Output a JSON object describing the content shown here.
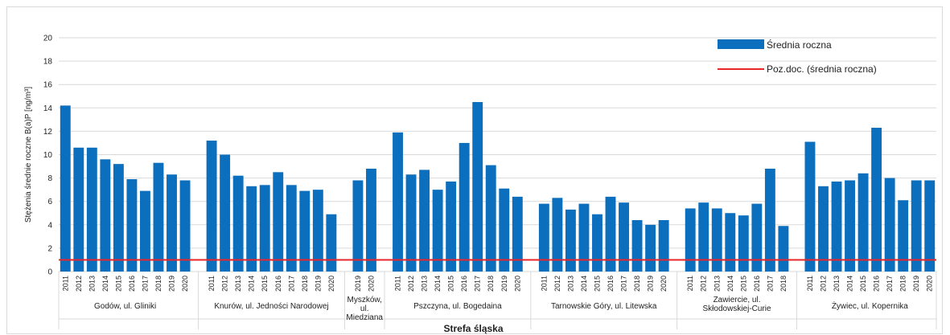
{
  "chart_data": {
    "type": "bar",
    "ylabel": "Stężenia średnie roczne B(a)P [ng/m³]",
    "ylim": [
      0,
      20
    ],
    "yticks": [
      0,
      2,
      4,
      6,
      8,
      10,
      12,
      14,
      16,
      18,
      20
    ],
    "grid": true,
    "legend_position": "top-right",
    "xlabel": "Strefa śląska",
    "colors": {
      "bar": "#0c6fbe",
      "limit": "#e8252a",
      "grid": "#d9d9d9"
    },
    "series": [
      {
        "name": "Średnia roczna",
        "kind": "bar"
      },
      {
        "name": "Poz.doc. (średnia roczna)",
        "kind": "line",
        "value": 1
      }
    ],
    "groups": [
      {
        "label": "Godów, ul. Gliniki",
        "years": [
          "2011",
          "2012",
          "2013",
          "2014",
          "2015",
          "2016",
          "2017",
          "2018",
          "2019",
          "2020"
        ],
        "values": [
          14.2,
          10.6,
          10.6,
          9.6,
          9.2,
          7.9,
          6.9,
          9.3,
          8.3,
          7.8
        ]
      },
      {
        "label": "Knurów, ul. Jedności Narodowej",
        "years": [
          "2011",
          "2012",
          "2013",
          "2014",
          "2015",
          "2016",
          "2017",
          "2018",
          "2019",
          "2020"
        ],
        "values": [
          11.2,
          10.0,
          8.2,
          7.3,
          7.4,
          8.5,
          7.4,
          6.9,
          7.0,
          4.9
        ]
      },
      {
        "label": "Myszków, ul. Miedziana",
        "years": [
          "2019",
          "2020"
        ],
        "values": [
          7.8,
          8.8
        ]
      },
      {
        "label": "Pszczyna, ul. Bogedaina",
        "years": [
          "2011",
          "2012",
          "2013",
          "2014",
          "2015",
          "2016",
          "2017",
          "2018",
          "2019",
          "2020"
        ],
        "values": [
          11.9,
          8.3,
          8.7,
          7.0,
          7.7,
          11.0,
          14.5,
          9.1,
          7.1,
          6.4
        ]
      },
      {
        "label": "Tarnowskie Góry, ul. Litewska",
        "years": [
          "2011",
          "2012",
          "2013",
          "2014",
          "2015",
          "2016",
          "2017",
          "2018",
          "2019",
          "2020"
        ],
        "values": [
          5.8,
          6.3,
          5.3,
          5.8,
          4.9,
          6.4,
          5.9,
          4.4,
          4.0,
          4.4
        ]
      },
      {
        "label": "Zawiercie, ul. Skłodowskiej-Curie",
        "years": [
          "2011",
          "2012",
          "2013",
          "2014",
          "2015",
          "2016",
          "2017",
          "2018"
        ],
        "values": [
          5.4,
          5.9,
          5.4,
          5.0,
          4.8,
          5.8,
          8.8,
          3.9
        ]
      },
      {
        "label": "Żywiec, ul. Kopernika",
        "years": [
          "2011",
          "2012",
          "2013",
          "2014",
          "2015",
          "2016",
          "2017",
          "2018",
          "2019",
          "2020"
        ],
        "values": [
          11.1,
          7.3,
          7.7,
          7.8,
          8.4,
          12.3,
          8.0,
          6.1,
          7.8,
          7.8
        ]
      }
    ]
  }
}
